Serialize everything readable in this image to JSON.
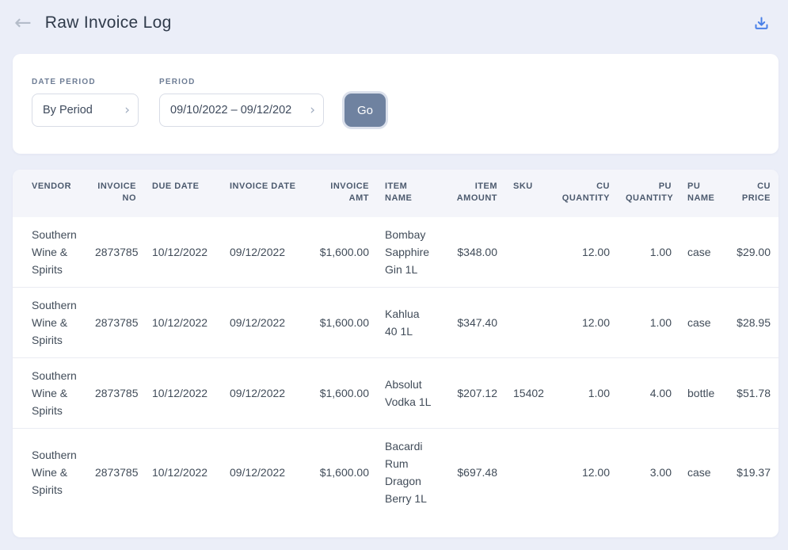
{
  "header": {
    "title": "Raw Invoice Log"
  },
  "icons": {
    "back_arrow": "←",
    "chevron": "›",
    "download": "download-tray-arrow"
  },
  "filters": {
    "date_period": {
      "label": "DATE PERIOD",
      "value": "By Period"
    },
    "period": {
      "label": "PERIOD",
      "value": "09/10/2022 – 09/12/202"
    },
    "go_label": "Go"
  },
  "table": {
    "columns": [
      {
        "key": "vendor",
        "label": "VENDOR",
        "align": "left"
      },
      {
        "key": "invoice-no",
        "label": "INVOICE NO",
        "align": "right"
      },
      {
        "key": "due-date",
        "label": "DUE DATE",
        "align": "left"
      },
      {
        "key": "invoice-date",
        "label": "INVOICE DATE",
        "align": "left"
      },
      {
        "key": "invoice-amt",
        "label": "INVOICE AMT",
        "align": "right"
      },
      {
        "key": "item-name",
        "label": "ITEM NAME",
        "align": "left"
      },
      {
        "key": "item-amount",
        "label": "ITEM AMOUNT",
        "align": "right"
      },
      {
        "key": "sku",
        "label": "SKU",
        "align": "left"
      },
      {
        "key": "cu-quantity",
        "label": "CU QUANTITY",
        "align": "right"
      },
      {
        "key": "pu-quantity",
        "label": "PU QUANTITY",
        "align": "right"
      },
      {
        "key": "pu-name",
        "label": "PU NAME",
        "align": "left"
      },
      {
        "key": "cu-price",
        "label": "CU PRICE",
        "align": "right"
      }
    ],
    "rows": [
      [
        "Southern Wine & Spirits",
        "2873785",
        "10/12/2022",
        "09/12/2022",
        "$1,600.00",
        "Bombay Sapphire Gin 1L",
        "$348.00",
        "",
        "12.00",
        "1.00",
        "case",
        "$29.00"
      ],
      [
        "Southern Wine & Spirits",
        "2873785",
        "10/12/2022",
        "09/12/2022",
        "$1,600.00",
        "Kahlua 40 1L",
        "$347.40",
        "",
        "12.00",
        "1.00",
        "case",
        "$28.95"
      ],
      [
        "Southern Wine & Spirits",
        "2873785",
        "10/12/2022",
        "09/12/2022",
        "$1,600.00",
        "Absolut Vodka 1L",
        "$207.12",
        "15402",
        "1.00",
        "4.00",
        "bottle",
        "$51.78"
      ],
      [
        "Southern Wine & Spirits",
        "2873785",
        "10/12/2022",
        "09/12/2022",
        "$1,600.00",
        "Bacardi Rum Dragon Berry 1L",
        "$697.48",
        "",
        "12.00",
        "3.00",
        "case",
        "$19.37"
      ]
    ]
  },
  "colors": {
    "page_bg": "#ebeef8",
    "accent_blue": "#4a80e8",
    "go_button": "#6f82a0",
    "table_header_bg": "#f4f5fa"
  }
}
